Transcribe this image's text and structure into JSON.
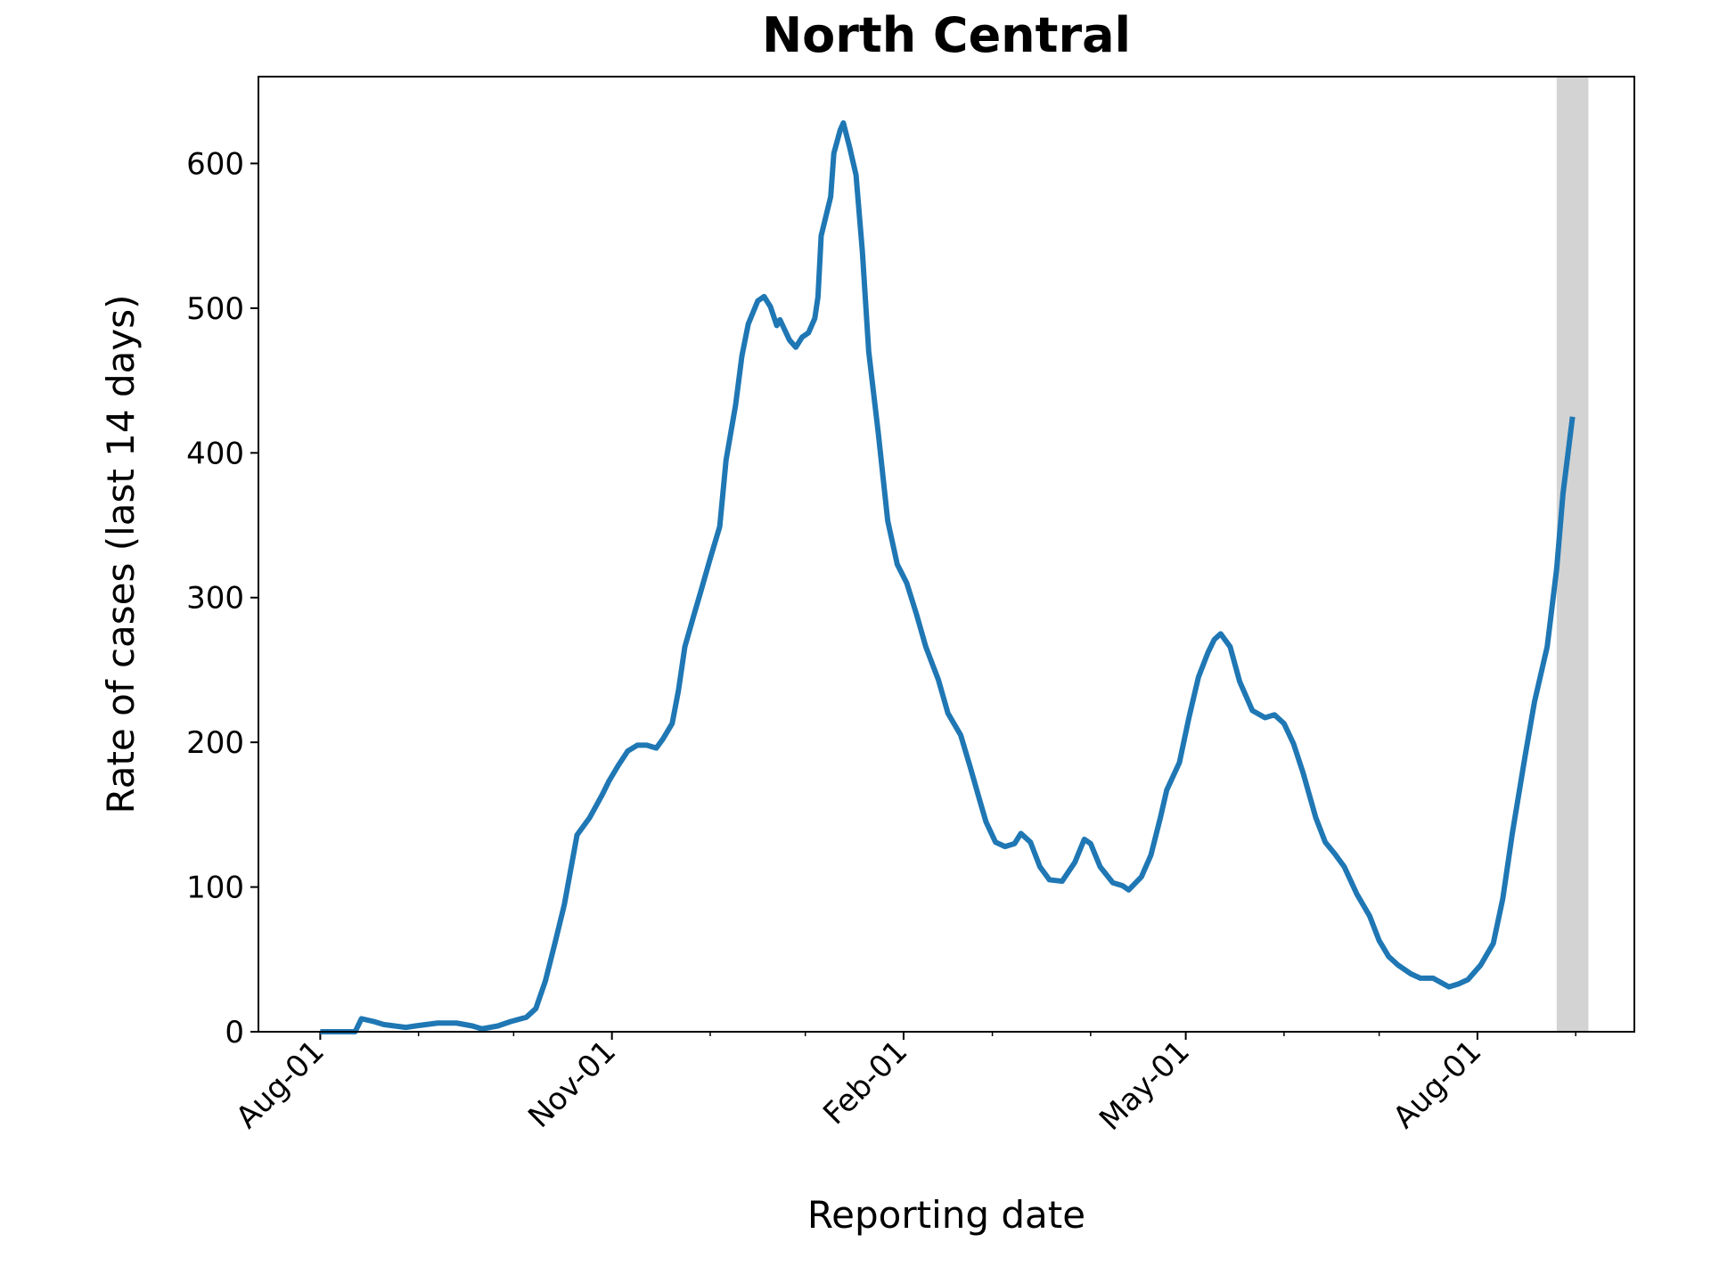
{
  "chart_data": {
    "type": "line",
    "title": "North Central",
    "xlabel": "Reporting date",
    "ylabel": "Rate of cases (last 14 days)",
    "color": "#1f77b4",
    "highlight_color": "#d3d3d3",
    "x": [
      0,
      11,
      13,
      17,
      20,
      27,
      30,
      37,
      43,
      48,
      51,
      56,
      60,
      65,
      68,
      71,
      74,
      77,
      81,
      85,
      89,
      91,
      94,
      97,
      100,
      103,
      106,
      108,
      111,
      113,
      115,
      118,
      120,
      123,
      126,
      128,
      131,
      133,
      135,
      138,
      140,
      142,
      144,
      145,
      148,
      150,
      152,
      154,
      156,
      157,
      158,
      161,
      162,
      164,
      165,
      167,
      169,
      171,
      173,
      176,
      179,
      182,
      185,
      188,
      191,
      195,
      198,
      202,
      205,
      208,
      210,
      213,
      216,
      219,
      221,
      224,
      227,
      230,
      234,
      238,
      241,
      243,
      246,
      250,
      253,
      255,
      259,
      262,
      265,
      267,
      271,
      274,
      277,
      280,
      282,
      284,
      287,
      290,
      292,
      294,
      298,
      301,
      304,
      307,
      310,
      314,
      317,
      320,
      323,
      327,
      331,
      334,
      337,
      340,
      344,
      347,
      351,
      356,
      359,
      362,
      366,
      370,
      373,
      376,
      380,
      383,
      387,
      390,
      392,
      395
    ],
    "values": [
      0,
      0,
      9,
      7,
      5,
      3,
      4,
      6,
      6,
      4,
      2,
      4,
      7,
      10,
      16,
      35,
      61,
      88,
      136,
      148,
      164,
      173,
      184,
      194,
      198,
      198,
      196,
      202,
      213,
      236,
      266,
      289,
      304,
      327,
      349,
      395,
      433,
      467,
      489,
      505,
      508,
      501,
      488,
      492,
      478,
      473,
      480,
      483,
      493,
      508,
      550,
      577,
      607,
      623,
      628,
      611,
      592,
      539,
      470,
      414,
      353,
      323,
      310,
      289,
      266,
      243,
      220,
      205,
      183,
      160,
      145,
      131,
      128,
      130,
      137,
      131,
      114,
      105,
      104,
      117,
      133,
      130,
      114,
      103,
      101,
      98,
      107,
      122,
      148,
      167,
      186,
      217,
      245,
      262,
      271,
      275,
      266,
      242,
      232,
      222,
      217,
      219,
      213,
      199,
      179,
      148,
      131,
      123,
      114,
      95,
      80,
      63,
      52,
      46,
      40,
      37,
      37,
      31,
      33,
      36,
      46,
      61,
      92,
      137,
      190,
      228,
      266,
      320,
      372,
      425
    ],
    "xlim": [
      -19.5,
      414.5
    ],
    "xticks": [
      {
        "value": 0,
        "label": "Aug-01"
      },
      {
        "value": 92,
        "label": "Nov-01"
      },
      {
        "value": 184,
        "label": "Feb-01"
      },
      {
        "value": 273,
        "label": "May-01"
      },
      {
        "value": 365,
        "label": "Aug-01"
      }
    ],
    "xminorticks": [
      31,
      61,
      123,
      153,
      212,
      243,
      304,
      334,
      396
    ],
    "ylim": [
      0,
      660
    ],
    "yticks": [
      0,
      100,
      200,
      300,
      400,
      500,
      600
    ],
    "highlight_xlim": [
      390,
      400
    ]
  }
}
